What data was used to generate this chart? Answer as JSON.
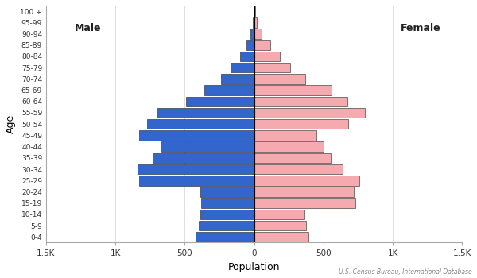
{
  "age_groups": [
    "0-4",
    "5-9",
    "10-14",
    "15-19",
    "20-24",
    "25-29",
    "30-34",
    "35-39",
    "40-44",
    "45-49",
    "50-54",
    "55-59",
    "60-64",
    "65-69",
    "70-74",
    "75-79",
    "80-84",
    "85-89",
    "90-94",
    "95-99",
    "100 +"
  ],
  "male": [
    420,
    400,
    390,
    380,
    390,
    830,
    840,
    730,
    670,
    830,
    770,
    700,
    490,
    360,
    240,
    170,
    100,
    55,
    25,
    8,
    2
  ],
  "female": [
    390,
    375,
    365,
    730,
    720,
    760,
    640,
    550,
    500,
    450,
    680,
    800,
    670,
    560,
    370,
    260,
    185,
    115,
    55,
    20,
    5
  ],
  "male_color": "#3366cc",
  "female_color": "#f4aaaf",
  "edge_color": "#222222",
  "xlabel": "Population",
  "ylabel": "Age",
  "xlim": 1500,
  "x_ticks": [
    -1500,
    -1000,
    -500,
    0,
    500,
    1000,
    1500
  ],
  "x_tick_labels": [
    "1.5K",
    "1K",
    "500",
    "0",
    "500",
    "1K",
    "1.5K"
  ],
  "source_text": "U.S. Census Bureau, International Database",
  "male_label": "Male",
  "female_label": "Female",
  "grid_color": "#dddddd",
  "bg_color": "#f8f8f8"
}
